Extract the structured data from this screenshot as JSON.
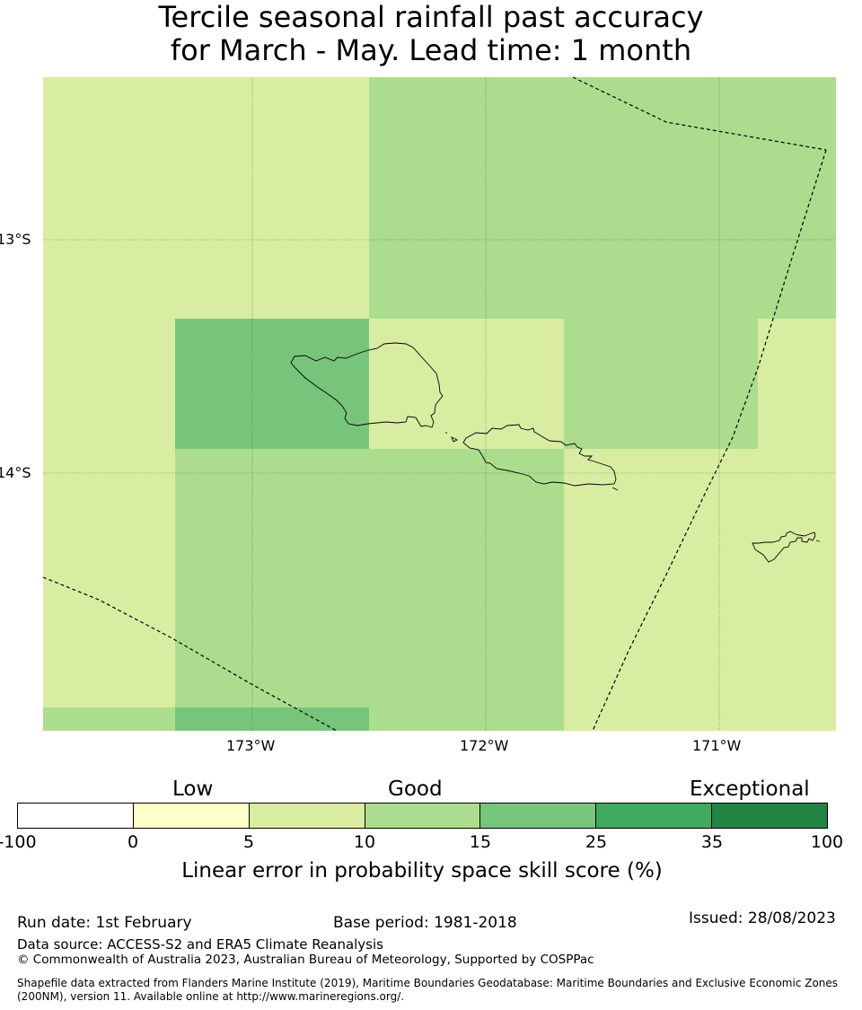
{
  "title": {
    "line1": "Tercile seasonal rainfall past accuracy",
    "line2": "for March - May. Lead time: 1 month"
  },
  "map": {
    "lat_labels": [
      "13°S",
      "14°S"
    ],
    "lon_labels": [
      "173°W",
      "172°W",
      "171°W"
    ],
    "colors": {
      "c0_5": "#fefecb",
      "c5_10": "#d9eda2",
      "c10_15": "#acdd8e",
      "c15_25": "#77c57b",
      "c25_35": "#40aa5d",
      "c35_100": "#228443",
      "grid": "#4a6b3a",
      "coast": "#000000",
      "boundary": "#000000"
    }
  },
  "colorbar": {
    "category_labels": [
      "Low",
      "Good",
      "Exceptional"
    ],
    "ticks": [
      "-100",
      "0",
      "5",
      "10",
      "15",
      "25",
      "35",
      "100"
    ],
    "colors": [
      "#ffffff",
      "#fefecb",
      "#d9eda2",
      "#acdd8e",
      "#77c57b",
      "#40aa5d",
      "#228443"
    ],
    "label": "Linear error in probability space skill score (%)"
  },
  "footer": {
    "run_date": "Run date: 1st February",
    "base_period": "Base period: 1981-2018",
    "issued": "Issued: 28/08/2023",
    "data_source": "Data source: ACCESS-S2 and ERA5 Climate Reanalysis",
    "copyright": "© Commonwealth of Australia 2023, Australian Bureau of Meteorology, Supported by COSPPac",
    "shapefile_line1": "Shapefile data extracted from Flanders Marine Institute (2019), Maritime Boundaries Geodatabase: Maritime Boundaries and Exclusive Economic Zones",
    "shapefile_line2": "(200NM), version 11. Available online at http://www.marineregions.org/."
  }
}
